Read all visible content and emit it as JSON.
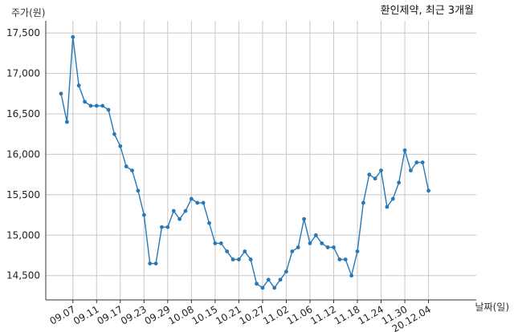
{
  "chart_data": {
    "type": "line",
    "title": "환인제약, 최근 3개월",
    "ylabel": "주가(원)",
    "xlabel": "날짜(일)",
    "ylim": [
      14200,
      17650
    ],
    "yticks": [
      14500,
      15000,
      15500,
      16000,
      16500,
      17000,
      17500
    ],
    "ytick_labels": [
      "14,500",
      "15,000",
      "15,500",
      "16,000",
      "16,500",
      "17,000",
      "17,500"
    ],
    "xtick_labels": [
      "09.07",
      "09.11",
      "09.17",
      "09.23",
      "09.29",
      "10.08",
      "10.15",
      "10.21",
      "10.27",
      "11.02",
      "11.06",
      "11.12",
      "11.18",
      "11.24",
      "11.30",
      "20.12.04"
    ],
    "xtick_indices": [
      2,
      6,
      10,
      14,
      18,
      22,
      26,
      30,
      34,
      38,
      42,
      46,
      50,
      54,
      58,
      62
    ],
    "grid": true,
    "line_color": "#2878b5",
    "series": [
      {
        "values": [
          16750,
          16400,
          17450,
          16850,
          16650,
          16600,
          16600,
          16600,
          16550,
          16250,
          16100,
          15850,
          15800,
          15550,
          15250,
          14650,
          14650,
          15100,
          15100,
          15300,
          15200,
          15300,
          15450,
          15400,
          15400,
          15150,
          14900,
          14900,
          14800,
          14700,
          14700,
          14800,
          14700,
          14400,
          14350,
          14450,
          14350,
          14450,
          14550,
          14800,
          14850,
          15200,
          14900,
          15000,
          14900,
          14850,
          14850,
          14700,
          14700,
          14500,
          14800,
          15400,
          15750,
          15700,
          15800,
          15350,
          15450,
          15650,
          16050,
          15800,
          15900,
          15900,
          15550
        ]
      }
    ]
  }
}
